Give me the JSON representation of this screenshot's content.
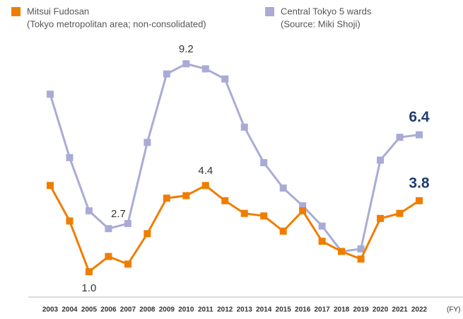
{
  "chart_data": {
    "type": "line",
    "categories": [
      "2003",
      "2004",
      "2005",
      "2006",
      "2007",
      "2008",
      "2009",
      "2010",
      "2011",
      "2012",
      "2013",
      "2014",
      "2015",
      "2016",
      "2017",
      "2018",
      "2019",
      "2020",
      "2021",
      "2022"
    ],
    "x_label": "(FY)",
    "ylim": [
      0,
      10
    ],
    "series": [
      {
        "name": "Mitsui Fudosan",
        "note": "(Tokyo metropolitan area; non-consolidated)",
        "color": "#ef7d00",
        "values": [
          4.4,
          3.0,
          1.0,
          1.6,
          1.3,
          2.5,
          3.9,
          4.0,
          4.4,
          3.8,
          3.3,
          3.2,
          2.6,
          3.4,
          2.2,
          1.8,
          1.5,
          3.1,
          3.3,
          3.8
        ],
        "value_labels": [
          null,
          null,
          "1.0",
          null,
          null,
          null,
          null,
          null,
          "4.4",
          null,
          null,
          null,
          null,
          null,
          null,
          null,
          null,
          null,
          null,
          "3.8"
        ]
      },
      {
        "name": "Central Tokyo 5 wards",
        "note": "(Source: Miki Shoji)",
        "color": "#a9abd6",
        "values": [
          8.0,
          5.5,
          3.4,
          2.7,
          2.9,
          6.1,
          8.8,
          9.2,
          9.0,
          8.6,
          6.7,
          5.3,
          4.3,
          3.6,
          2.8,
          1.8,
          1.9,
          5.4,
          6.3,
          6.4
        ],
        "value_labels": [
          null,
          null,
          null,
          "2.7",
          null,
          null,
          null,
          "9.2",
          null,
          null,
          null,
          null,
          null,
          null,
          null,
          null,
          null,
          null,
          null,
          "6.4"
        ]
      }
    ]
  }
}
